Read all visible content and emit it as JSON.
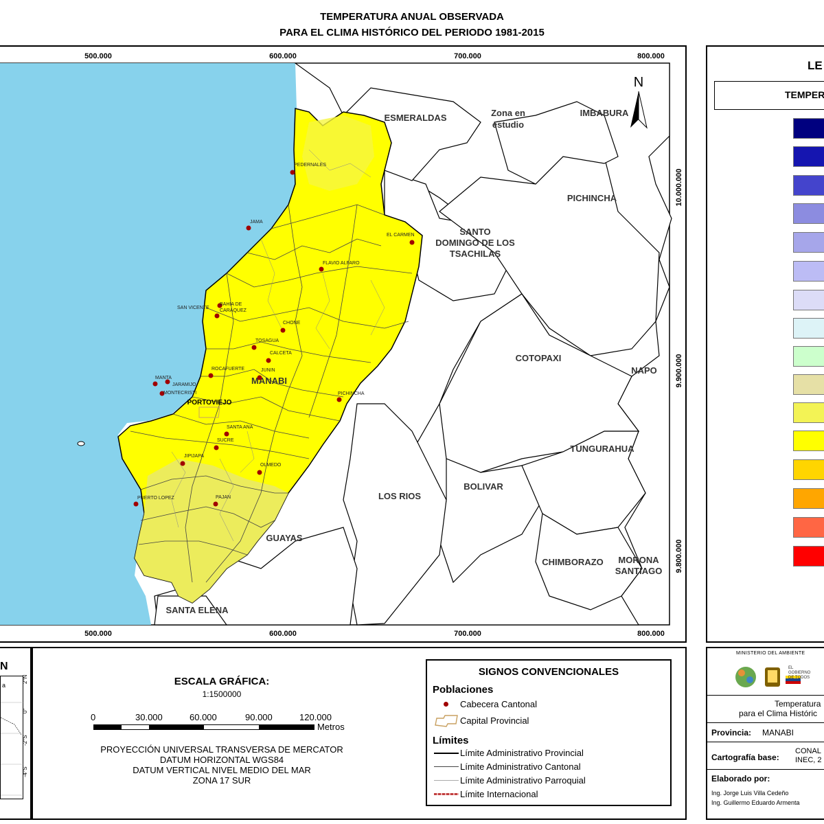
{
  "title": {
    "line1": "TEMPERATURA ANUAL OBSERVADA",
    "line2": "PARA EL CLIMA HISTÓRICO DEL PERIODO 1981-2015"
  },
  "map": {
    "x_ticks": [
      "500.000",
      "600.000",
      "700.000",
      "800.000"
    ],
    "y_ticks": [
      "10.000.000",
      "9.900.000",
      "9.800.000"
    ],
    "north_label": "N",
    "provinces": {
      "esmeraldas": "ESMERALDAS",
      "imbabura": "IMBABURA",
      "zona_line1": "Zona en",
      "zona_line2": "estudio",
      "pichincha": "PICHINCHA",
      "santo_line1": "SANTO",
      "santo_line2": "DOMINGO DE LOS",
      "santo_line3": "TSACHILAS",
      "cotopaxi": "COTOPAXI",
      "napo": "NAPO",
      "tungurahua": "TUNGURAHUA",
      "bolivar": "BOLIVAR",
      "los_rios": "LOS RIOS",
      "guayas": "GUAYAS",
      "chimborazo": "CHIMBORAZO",
      "morona_line1": "MORONA",
      "morona_line2": "SANTIAGO",
      "santa_elena": "SANTA ELENA",
      "manabi": "MANABI"
    },
    "towns": {
      "pedernales": "PEDERNALES",
      "jama": "JAMA",
      "el_carmen": "EL CARMEN",
      "flavio_alfaro": "FLAVIO ALFARO",
      "san_vicente": "SAN VICENTE",
      "bahia_line1": "BAHIA DE",
      "bahia_line2": "CARAQUEZ",
      "chone": "CHONE",
      "tosagua": "TOSAGUA",
      "calceta": "CALCETA",
      "rocafuerte": "ROCAFUERTE",
      "junin": "JUNIN",
      "manta": "MANTA",
      "jaramijo": "JARAMIJO",
      "montecristi": "MONTECRISTI",
      "pichincha_town": "PICHINCHA",
      "portoviejo": "PORTOVIEJO",
      "santa_ana": "SANTA ANA",
      "sucre": "SUCRE",
      "jipijapa": "JIPIJAPA",
      "olmedo": "OLMEDO",
      "puerto_lopez": "PUERTO LOPEZ",
      "pajan": "PAJAN"
    },
    "colors": {
      "sea": "#87d2ec",
      "province_fill": "#ffff00",
      "light_fill": "#eaea66",
      "town_dot": "#a00000"
    }
  },
  "legend": {
    "heading": "LE",
    "subheading": "TEMPER",
    "swatches": [
      "#00007f",
      "#1515b0",
      "#4444cc",
      "#8c8ce0",
      "#a6a6ea",
      "#bcbcf5",
      "#dcdcf7",
      "#ddf3f7",
      "#ccffcc",
      "#e6e0a6",
      "#f3f355",
      "#ffff00",
      "#ffd500",
      "#ffa600",
      "#ff6644",
      "#ff0000"
    ]
  },
  "inset": {
    "letter": "N",
    "lat_ticks": [
      "2°N",
      "0°",
      "-2°S",
      "-4°S"
    ],
    "partial_label": "a"
  },
  "scale": {
    "heading": "ESCALA GRÁFICA:",
    "ratio": "1:1500000",
    "ticks": [
      "0",
      "30.000",
      "60.000",
      "90.000",
      "120.000"
    ],
    "unit": "Metros",
    "proj_line1": "PROYECCIÓN UNIVERSAL TRANSVERSA DE MERCATOR",
    "proj_line2": "DATUM HORIZONTAL WGS84",
    "proj_line3": "DATUM VERTICAL NIVEL MEDIO DEL MAR",
    "proj_line4": "ZONA 17 SUR"
  },
  "signs": {
    "heading": "SIGNOS CONVENCIONALES",
    "poblaciones": "Poblaciones",
    "cabecera": "Cabecera Cantonal",
    "capital": "Capital Provincial",
    "limites": "Límites",
    "lim_prov": "Límite Administrativo Provincial",
    "lim_cant": "Límite Administrativo Cantonal",
    "lim_parr": "Límite Administrativo Parroquial",
    "lim_int": "Límite Internacional"
  },
  "info": {
    "ministry": "MINISTERIO DEL AMBIENTE",
    "gob_line1": "EL",
    "gob_line2": "GOBIERNO",
    "gob_line3": "DE TODOS",
    "desc_line1": "Temperatura",
    "desc_line2": "para el Clima Históric",
    "provincia_label": "Provincia:",
    "provincia_value": "MANABI",
    "cartografia_label": "Cartografía base:",
    "cartografia_value1": "CONAL",
    "cartografia_value2": "INEC, 2",
    "elaborado_label": "Elaborado por:",
    "author1": "Ing. Jorge Luis Villa Cedeño",
    "author2": "Ing. Guillermo Eduardo Armenta"
  }
}
